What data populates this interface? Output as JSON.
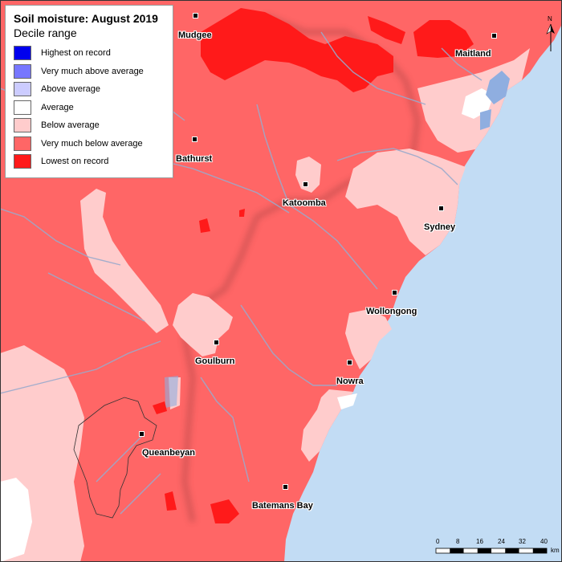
{
  "legend": {
    "title": "Soil moisture: August 2019",
    "subtitle": "Decile range",
    "items": [
      {
        "label": "Highest on record",
        "color": "#0000ee"
      },
      {
        "label": "Very much above average",
        "color": "#7777ff"
      },
      {
        "label": "Above average",
        "color": "#ccccff"
      },
      {
        "label": "Average",
        "color": "#ffffff"
      },
      {
        "label": "Below average",
        "color": "#ffcccc"
      },
      {
        "label": "Very much below average",
        "color": "#ff6666"
      },
      {
        "label": "Lowest on record",
        "color": "#ff1a1a"
      }
    ]
  },
  "towns": [
    {
      "name": "Mudgee",
      "key": "mudgee"
    },
    {
      "name": "Maitland",
      "key": "maitland"
    },
    {
      "name": "Bathurst",
      "key": "bathurst"
    },
    {
      "name": "Katoomba",
      "key": "katoomba"
    },
    {
      "name": "Sydney",
      "key": "sydney"
    },
    {
      "name": "Wollongong",
      "key": "wollongong"
    },
    {
      "name": "Goulburn",
      "key": "goulburn"
    },
    {
      "name": "Nowra",
      "key": "nowra"
    },
    {
      "name": "Queanbeyan",
      "key": "queanbeyan"
    },
    {
      "name": "Batemans Bay",
      "key": "batemans-bay"
    }
  ],
  "scale": {
    "ticks": [
      "0",
      "8",
      "16",
      "24",
      "32",
      "40"
    ],
    "unit": "km"
  },
  "colors": {
    "ocean": "#c2dcf4",
    "below_average": "#ffcccc",
    "very_much_below": "#ff6666",
    "lowest": "#ff1a1a",
    "river": "#9aaacc"
  }
}
